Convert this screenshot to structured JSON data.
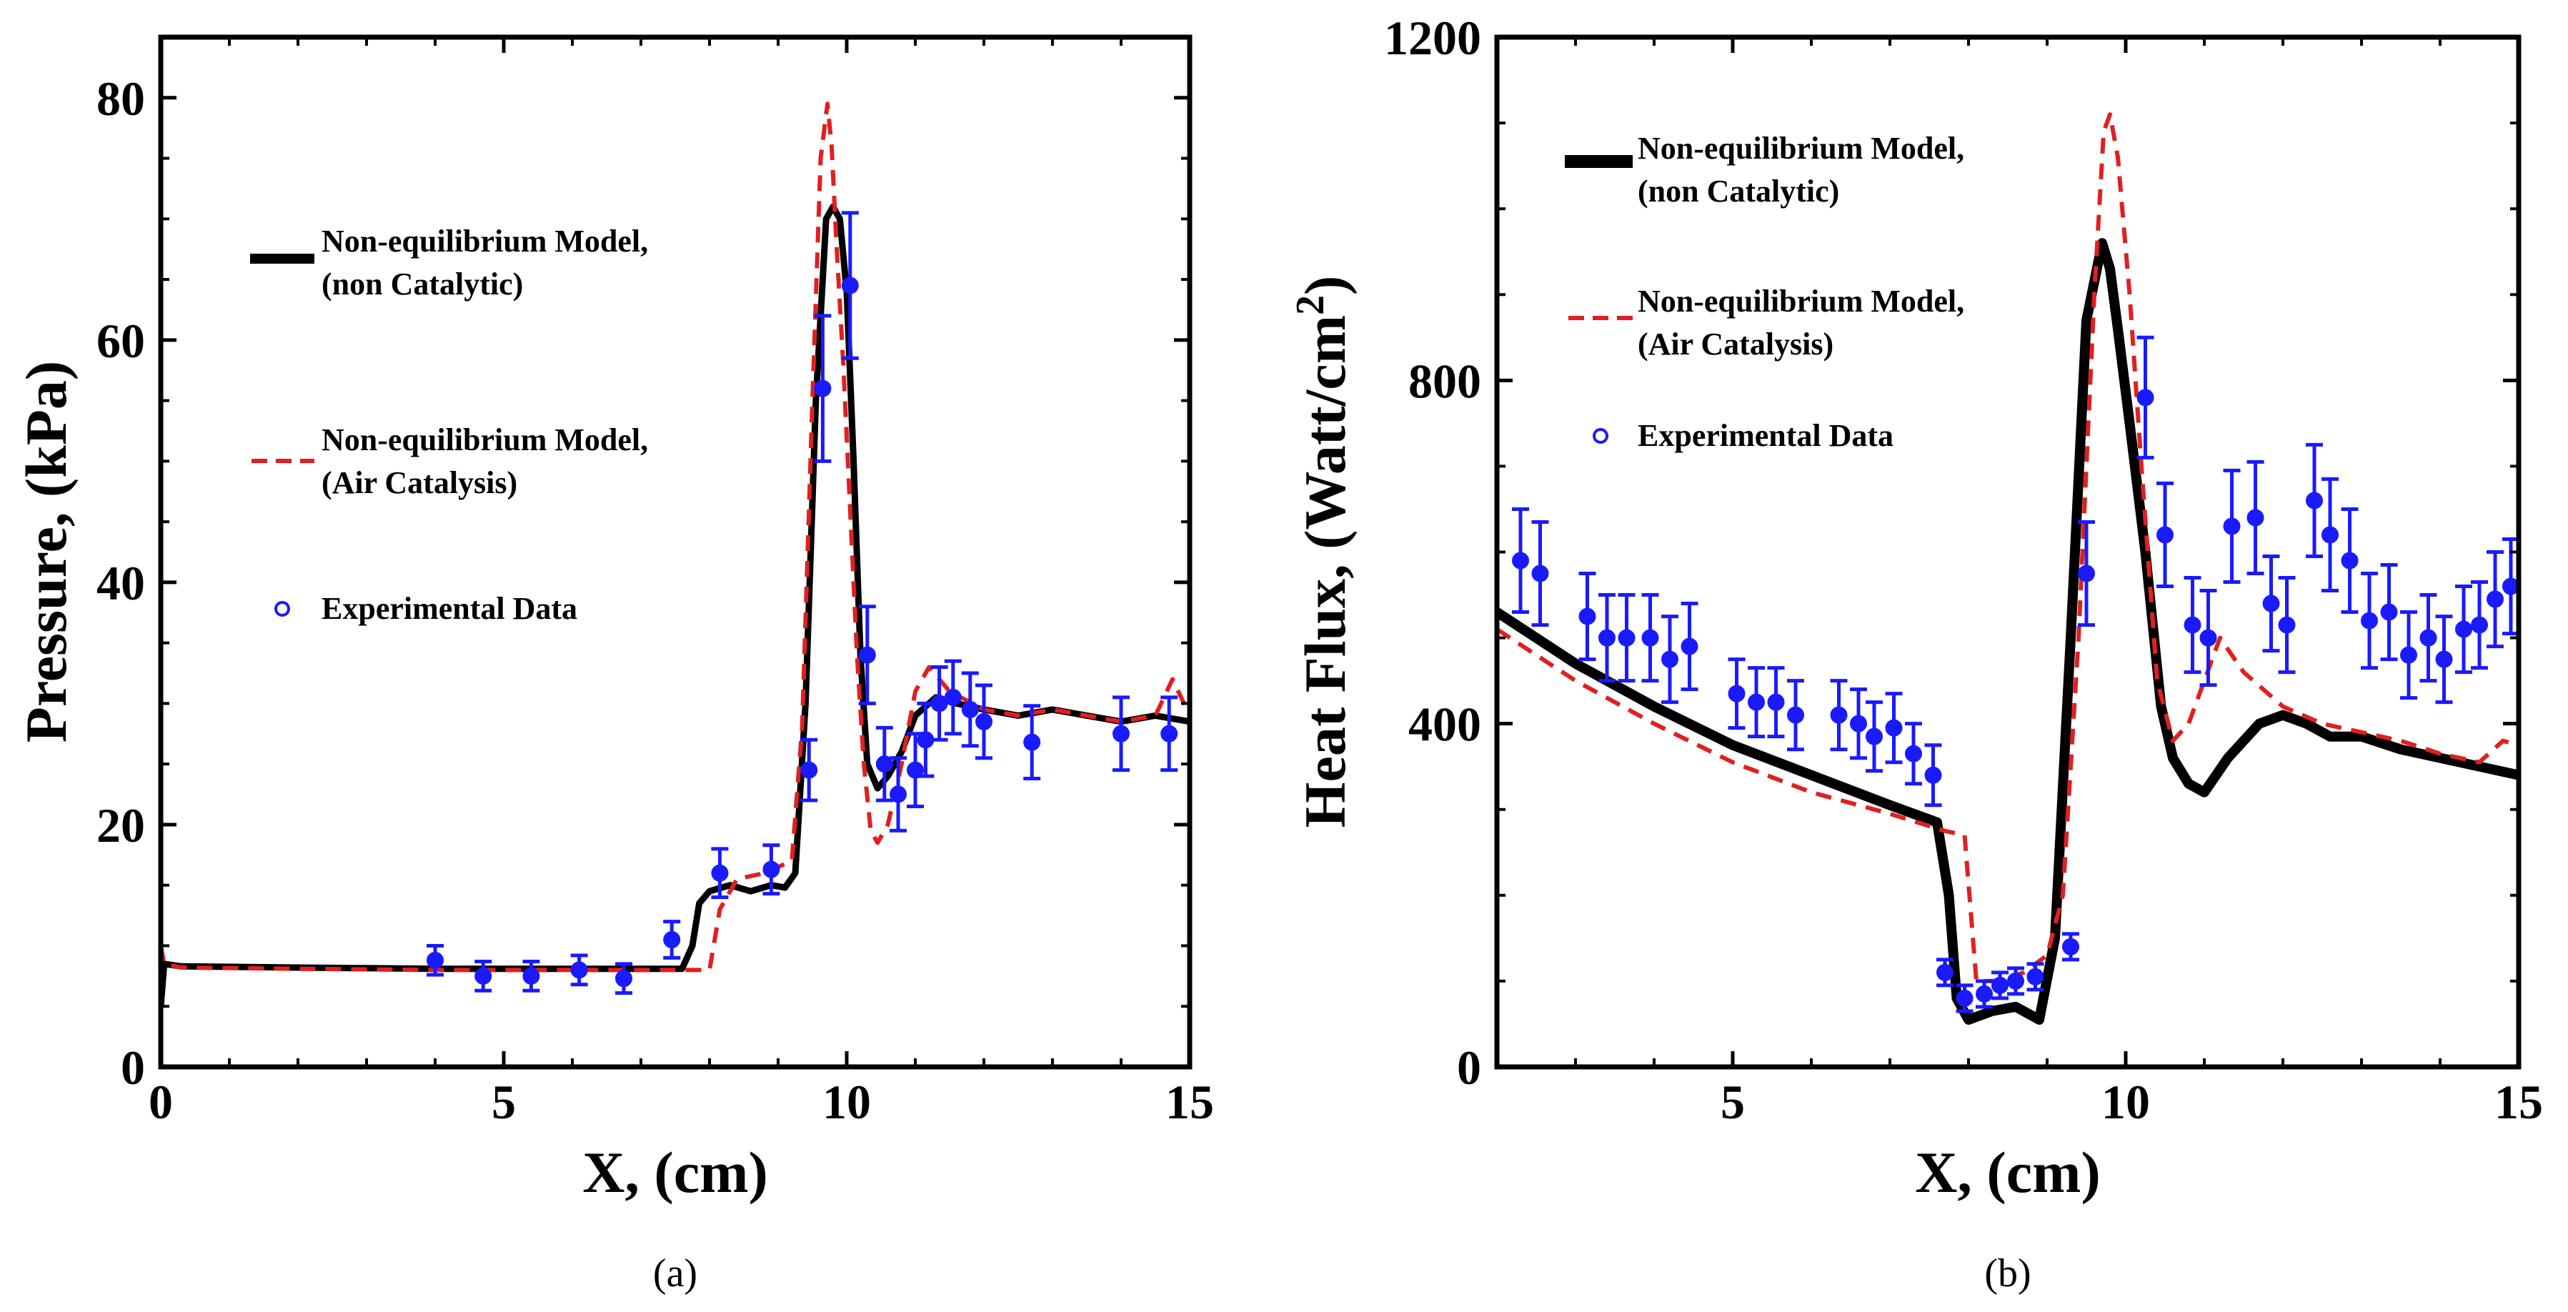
{
  "chart_data": [
    {
      "type": "line",
      "panel": "a",
      "caption": "(a)",
      "xlabel": "X, (cm)",
      "ylabel": "Pressure, (kPa)",
      "xlim": [
        0,
        15
      ],
      "ylim": [
        0,
        85
      ],
      "xticks": [
        "0",
        "5",
        "10",
        "15"
      ],
      "xtick_values": [
        0,
        5,
        10,
        15
      ],
      "yticks": [
        "0",
        "20",
        "40",
        "60",
        "80"
      ],
      "ytick_values": [
        0,
        20,
        40,
        60,
        80
      ],
      "legend": {
        "placement": "center-left",
        "entries": [
          {
            "line1": "Non-equilibrium Model,",
            "line2": "(non Catalytic)",
            "style": "solid-black"
          },
          {
            "line1": "Non-equilibrium Model,",
            "line2": "(Air Catalysis)",
            "style": "dashed-red"
          },
          {
            "line1": "Experimental Data",
            "line2": "",
            "style": "marker-blue"
          }
        ]
      },
      "series": [
        {
          "name": "Non-equilibrium Model, (non Catalytic)",
          "color": "#000000",
          "dash": "",
          "width": 9,
          "x": [
            0,
            0.05,
            0.3,
            2,
            4,
            6,
            7.6,
            7.75,
            7.85,
            8.0,
            8.3,
            8.6,
            8.9,
            9.1,
            9.25,
            9.4,
            9.55,
            9.7,
            9.8,
            9.9,
            10.0,
            10.1,
            10.2,
            10.3,
            10.45,
            10.6,
            10.8,
            11.0,
            11.3,
            11.6,
            12.0,
            12.5,
            13.0,
            13.5,
            14.0,
            14.5,
            15.0
          ],
          "y": [
            5,
            8.5,
            8.3,
            8.2,
            8.1,
            8.1,
            8.1,
            10,
            13.5,
            14.5,
            15,
            14.5,
            15,
            14.8,
            16,
            30,
            55,
            70,
            71,
            70,
            64,
            50,
            34,
            25,
            23,
            24,
            26,
            29,
            30.5,
            30,
            29.5,
            29,
            29.5,
            29,
            28.5,
            29,
            28.5
          ]
        },
        {
          "name": "Non-equilibrium Model, (Air Catalysis)",
          "color": "#e02020",
          "dash": "22,14",
          "width": 6,
          "x": [
            0,
            0.05,
            0.3,
            2,
            4,
            6,
            7.6,
            8.0,
            8.15,
            8.4,
            8.8,
            9.2,
            9.35,
            9.5,
            9.62,
            9.72,
            9.78,
            9.85,
            9.95,
            10.05,
            10.15,
            10.25,
            10.35,
            10.45,
            10.6,
            10.8,
            11.0,
            11.2,
            11.5,
            12.0,
            12.5,
            13.0,
            13.5,
            14.0,
            14.5,
            14.75,
            15.0
          ],
          "y": [
            10,
            8.5,
            8.2,
            8.1,
            8.0,
            8.0,
            8.0,
            8.0,
            13,
            15.5,
            16,
            17,
            28,
            55,
            75,
            79.5,
            76,
            68,
            58,
            46,
            34,
            25,
            19.5,
            18.5,
            20,
            25,
            31,
            33,
            31,
            29.5,
            29,
            29.5,
            29,
            28.5,
            29,
            32,
            29
          ]
        }
      ],
      "experimental": {
        "name": "Experimental Data",
        "color": "#1a1aff",
        "points": [
          {
            "x": 4.0,
            "y": 8.8,
            "err": 1.2
          },
          {
            "x": 4.7,
            "y": 7.5,
            "err": 1.2
          },
          {
            "x": 5.4,
            "y": 7.5,
            "err": 1.2
          },
          {
            "x": 6.1,
            "y": 8.0,
            "err": 1.2
          },
          {
            "x": 6.75,
            "y": 7.3,
            "err": 1.2
          },
          {
            "x": 7.45,
            "y": 10.5,
            "err": 1.5
          },
          {
            "x": 8.15,
            "y": 16.0,
            "err": 2.0
          },
          {
            "x": 8.9,
            "y": 16.3,
            "err": 2.0
          },
          {
            "x": 9.45,
            "y": 24.5,
            "err": 2.5
          },
          {
            "x": 9.65,
            "y": 56.0,
            "err": 6.0
          },
          {
            "x": 10.05,
            "y": 64.5,
            "err": 6.0
          },
          {
            "x": 10.3,
            "y": 34.0,
            "err": 4.0
          },
          {
            "x": 10.55,
            "y": 25.0,
            "err": 3.0
          },
          {
            "x": 10.75,
            "y": 22.5,
            "err": 3.0
          },
          {
            "x": 11.0,
            "y": 24.5,
            "err": 3.0
          },
          {
            "x": 11.15,
            "y": 27.0,
            "err": 3.0
          },
          {
            "x": 11.35,
            "y": 30.0,
            "err": 3.0
          },
          {
            "x": 11.55,
            "y": 30.5,
            "err": 3.0
          },
          {
            "x": 11.8,
            "y": 29.5,
            "err": 3.0
          },
          {
            "x": 12.0,
            "y": 28.5,
            "err": 3.0
          },
          {
            "x": 12.7,
            "y": 26.8,
            "err": 3.0
          },
          {
            "x": 14.0,
            "y": 27.5,
            "err": 3.0
          },
          {
            "x": 14.7,
            "y": 27.5,
            "err": 3.0
          }
        ]
      }
    },
    {
      "type": "line",
      "panel": "b",
      "caption": "(b)",
      "xlabel": "X, (cm)",
      "ylabel": "Heat Flux, (Watt/cm",
      "ylabel_superscript": "2",
      "ylabel_close": ")",
      "xlim": [
        2,
        15
      ],
      "ylim": [
        0,
        1200
      ],
      "xticks": [
        "5",
        "10",
        "15"
      ],
      "xtick_values": [
        5,
        10,
        15
      ],
      "yticks": [
        "0",
        "400",
        "800",
        "1200"
      ],
      "ytick_values": [
        0,
        400,
        800,
        1200
      ],
      "legend": {
        "placement": "top-left",
        "entries": [
          {
            "line1": "Non-equilibrium Model,",
            "line2": "(non Catalytic)",
            "style": "solid-black"
          },
          {
            "line1": "Non-equilibrium Model,",
            "line2": "(Air Catalysis)",
            "style": "dashed-red"
          },
          {
            "line1": "Experimental Data",
            "line2": "",
            "style": "marker-blue"
          }
        ]
      },
      "series": [
        {
          "name": "Non-equilibrium Model, (non Catalytic)",
          "color": "#000000",
          "dash": "",
          "width": 14,
          "x": [
            2,
            3,
            4,
            5,
            6,
            7,
            7.6,
            7.75,
            7.85,
            8.0,
            8.3,
            8.6,
            8.9,
            9.1,
            9.3,
            9.5,
            9.7,
            9.8,
            9.9,
            10.05,
            10.25,
            10.45,
            10.6,
            10.8,
            11.0,
            11.3,
            11.7,
            12.0,
            12.3,
            12.6,
            13.0,
            13.5,
            14.0,
            14.5,
            15.0
          ],
          "y": [
            530,
            470,
            420,
            375,
            340,
            305,
            285,
            200,
            80,
            55,
            65,
            70,
            55,
            150,
            500,
            870,
            960,
            930,
            860,
            750,
            600,
            420,
            360,
            330,
            320,
            360,
            400,
            410,
            400,
            385,
            385,
            370,
            360,
            350,
            340
          ]
        },
        {
          "name": "Non-equilibrium Model, (Air Catalysis)",
          "color": "#e02020",
          "dash": "22,14",
          "width": 6,
          "x": [
            2,
            3,
            4,
            5,
            6,
            7,
            7.7,
            7.95,
            8.1,
            8.4,
            8.7,
            9.0,
            9.2,
            9.4,
            9.6,
            9.72,
            9.8,
            9.9,
            10.05,
            10.2,
            10.4,
            10.6,
            10.8,
            11.0,
            11.2,
            11.5,
            12.0,
            12.5,
            13.0,
            13.5,
            14.0,
            14.5,
            14.8,
            15.0
          ],
          "y": [
            510,
            450,
            400,
            355,
            320,
            295,
            275,
            270,
            100,
            100,
            110,
            130,
            200,
            500,
            900,
            1090,
            1110,
            1060,
            900,
            700,
            450,
            380,
            400,
            450,
            500,
            460,
            420,
            400,
            390,
            380,
            365,
            355,
            380,
            375
          ]
        }
      ],
      "experimental": {
        "name": "Experimental Data",
        "color": "#1a1aff",
        "points": [
          {
            "x": 2.3,
            "y": 590,
            "err": 60
          },
          {
            "x": 2.55,
            "y": 575,
            "err": 60
          },
          {
            "x": 3.15,
            "y": 525,
            "err": 50
          },
          {
            "x": 3.4,
            "y": 500,
            "err": 50
          },
          {
            "x": 3.65,
            "y": 500,
            "err": 50
          },
          {
            "x": 3.95,
            "y": 500,
            "err": 50
          },
          {
            "x": 4.2,
            "y": 475,
            "err": 50
          },
          {
            "x": 4.45,
            "y": 490,
            "err": 50
          },
          {
            "x": 5.05,
            "y": 435,
            "err": 40
          },
          {
            "x": 5.3,
            "y": 425,
            "err": 40
          },
          {
            "x": 5.55,
            "y": 425,
            "err": 40
          },
          {
            "x": 5.8,
            "y": 410,
            "err": 40
          },
          {
            "x": 6.35,
            "y": 410,
            "err": 40
          },
          {
            "x": 6.6,
            "y": 400,
            "err": 40
          },
          {
            "x": 6.8,
            "y": 385,
            "err": 40
          },
          {
            "x": 7.05,
            "y": 395,
            "err": 40
          },
          {
            "x": 7.3,
            "y": 365,
            "err": 35
          },
          {
            "x": 7.55,
            "y": 340,
            "err": 35
          },
          {
            "x": 7.7,
            "y": 110,
            "err": 15
          },
          {
            "x": 7.95,
            "y": 80,
            "err": 15
          },
          {
            "x": 8.2,
            "y": 85,
            "err": 15
          },
          {
            "x": 8.4,
            "y": 95,
            "err": 15
          },
          {
            "x": 8.6,
            "y": 100,
            "err": 15
          },
          {
            "x": 8.85,
            "y": 105,
            "err": 15
          },
          {
            "x": 9.3,
            "y": 140,
            "err": 15
          },
          {
            "x": 9.5,
            "y": 575,
            "err": 60
          },
          {
            "x": 10.25,
            "y": 780,
            "err": 70
          },
          {
            "x": 10.5,
            "y": 620,
            "err": 60
          },
          {
            "x": 10.85,
            "y": 515,
            "err": 55
          },
          {
            "x": 11.05,
            "y": 500,
            "err": 55
          },
          {
            "x": 11.35,
            "y": 630,
            "err": 65
          },
          {
            "x": 11.65,
            "y": 640,
            "err": 65
          },
          {
            "x": 11.85,
            "y": 540,
            "err": 55
          },
          {
            "x": 12.05,
            "y": 515,
            "err": 55
          },
          {
            "x": 12.4,
            "y": 660,
            "err": 65
          },
          {
            "x": 12.6,
            "y": 620,
            "err": 65
          },
          {
            "x": 12.85,
            "y": 590,
            "err": 60
          },
          {
            "x": 13.1,
            "y": 520,
            "err": 55
          },
          {
            "x": 13.35,
            "y": 530,
            "err": 55
          },
          {
            "x": 13.6,
            "y": 480,
            "err": 50
          },
          {
            "x": 13.85,
            "y": 500,
            "err": 50
          },
          {
            "x": 14.05,
            "y": 475,
            "err": 50
          },
          {
            "x": 14.3,
            "y": 510,
            "err": 50
          },
          {
            "x": 14.5,
            "y": 515,
            "err": 50
          },
          {
            "x": 14.7,
            "y": 545,
            "err": 55
          },
          {
            "x": 14.9,
            "y": 560,
            "err": 55
          }
        ]
      }
    }
  ]
}
